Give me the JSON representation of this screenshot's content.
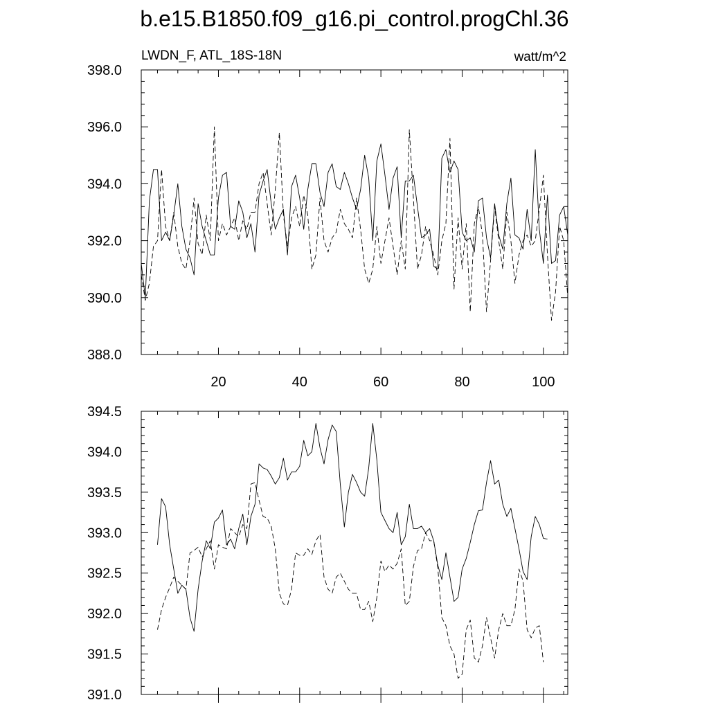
{
  "page": {
    "title": "b.e15.B1850.f09_g16.pi_control.progChl.36"
  },
  "chart_data": [
    {
      "type": "line",
      "subtitle_left": "LWDN_F, ATL_18S-18N",
      "subtitle_right": "watt/m^2",
      "xlabel": "",
      "ylabel": "",
      "xlim": [
        1,
        106
      ],
      "ylim": [
        388,
        398
      ],
      "x_ticks": [
        20,
        40,
        60,
        80,
        100
      ],
      "x_tick_labels": [
        "20",
        "40",
        "60",
        "80",
        "100"
      ],
      "y_ticks": [
        388,
        390,
        392,
        394,
        396,
        398
      ],
      "y_tick_labels": [
        "388.0",
        "390.0",
        "392.0",
        "394.0",
        "396.0",
        "398.0"
      ],
      "grid": false,
      "legend": "none",
      "series": [
        {
          "style": "solid",
          "x_start": 1,
          "values": [
            391.2,
            390.0,
            393.4,
            394.5,
            394.5,
            392.0,
            392.3,
            392.0,
            392.9,
            394.0,
            392.5,
            391.7,
            391.4,
            390.8,
            393.3,
            392.5,
            392.0,
            391.5,
            391.5,
            393.5,
            394.3,
            394.4,
            392.5,
            392.4,
            393.4,
            393.0,
            392.1,
            392.6,
            391.6,
            393.6,
            394.1,
            394.5,
            393.3,
            392.4,
            392.8,
            393.1,
            391.5,
            393.9,
            394.3,
            393.5,
            392.4,
            393.8,
            394.7,
            394.7,
            393.7,
            393.2,
            394.4,
            394.7,
            393.9,
            393.8,
            394.4,
            394.0,
            393.5,
            393.1,
            393.8,
            395.0,
            394.2,
            392.0,
            394.8,
            395.4,
            394.3,
            393.1,
            394.2,
            394.6,
            392.1,
            394.1,
            394.1,
            394.3,
            393.2,
            392.1,
            392.2,
            392.4,
            391.1,
            391.0,
            394.9,
            395.2,
            394.4,
            394.8,
            394.5,
            392.3,
            392.0,
            392.1,
            391.6,
            393.4,
            393.5,
            392.1,
            391.4,
            393.3,
            392.2,
            391.7,
            393.3,
            394.2,
            392.2,
            392.1,
            391.7,
            393.1,
            392.0,
            395.2,
            392.4,
            391.2,
            393.6,
            391.2,
            391.3,
            392.9,
            393.2,
            392.2
          ]
        },
        {
          "style": "dashed",
          "x_start": 1,
          "values": [
            390.8,
            389.9,
            390.5,
            391.8,
            392.0,
            394.5,
            392.5,
            392.0,
            393.0,
            391.8,
            391.2,
            391.0,
            392.0,
            393.5,
            391.9,
            391.5,
            392.9,
            392.0,
            396.0,
            392.0,
            392.6,
            392.2,
            392.5,
            392.8,
            392.0,
            392.7,
            392.4,
            393.0,
            393.0,
            394.0,
            394.4,
            393.3,
            392.2,
            393.8,
            395.8,
            392.9,
            391.8,
            392.8,
            393.2,
            392.5,
            393.6,
            392.9,
            391.0,
            391.5,
            393.5,
            392.0,
            391.6,
            392.1,
            392.3,
            393.1,
            392.6,
            392.4,
            392.1,
            393.5,
            392.4,
            391.0,
            390.5,
            391.0,
            392.5,
            391.2,
            392.0,
            392.8,
            391.8,
            390.8,
            392.0,
            391.0,
            395.9,
            393.5,
            391.0,
            391.5,
            392.5,
            392.0,
            391.5,
            390.8,
            392.0,
            392.6,
            395.6,
            390.3,
            392.8,
            391.0,
            392.6,
            389.5,
            392.6,
            393.2,
            392.2,
            389.5,
            391.3,
            393.2,
            392.0,
            391.0,
            393.0,
            392.0,
            390.5,
            391.5,
            392.0,
            392.2,
            391.8,
            392.0,
            393.1,
            394.3,
            391.5,
            389.2,
            390.2,
            392.5,
            392.0,
            390.0
          ]
        }
      ]
    },
    {
      "type": "line",
      "xlim": [
        1,
        106
      ],
      "ylim": [
        391.0,
        394.5
      ],
      "x_ticks": [
        20,
        40,
        60,
        80,
        100
      ],
      "x_tick_labels": [],
      "y_ticks": [
        391.0,
        391.5,
        392.0,
        392.5,
        393.0,
        393.5,
        394.0,
        394.5
      ],
      "y_tick_labels": [
        "391.0",
        "391.5",
        "392.0",
        "392.5",
        "393.0",
        "393.5",
        "394.0",
        "394.5"
      ],
      "grid": false,
      "legend": "none",
      "series": [
        {
          "style": "solid",
          "x_start": 5,
          "values": [
            392.85,
            393.42,
            393.32,
            392.85,
            392.55,
            392.25,
            392.35,
            392.3,
            391.95,
            391.78,
            392.3,
            392.65,
            392.9,
            392.8,
            393.13,
            393.18,
            393.28,
            392.85,
            392.92,
            392.8,
            393.05,
            393.23,
            392.85,
            393.2,
            393.35,
            393.85,
            393.8,
            393.78,
            393.7,
            393.6,
            393.68,
            393.92,
            393.65,
            393.75,
            393.75,
            393.82,
            394.14,
            393.95,
            394.0,
            394.35,
            394.05,
            393.85,
            394.15,
            394.33,
            394.25,
            393.6,
            393.07,
            393.5,
            393.72,
            393.62,
            393.5,
            393.45,
            393.8,
            394.35,
            393.9,
            393.25,
            393.15,
            393.05,
            393.0,
            393.25,
            392.85,
            392.95,
            393.35,
            393.05,
            393.05,
            393.08,
            393.0,
            393.05,
            392.9,
            392.6,
            392.42,
            392.75,
            392.45,
            392.15,
            392.2,
            392.55,
            392.68,
            392.88,
            393.1,
            393.27,
            393.28,
            393.62,
            393.89,
            393.6,
            393.65,
            393.35,
            393.2,
            393.3,
            393.05,
            392.8,
            392.52,
            392.42,
            392.95,
            393.2,
            393.1,
            392.93,
            392.92
          ]
        },
        {
          "style": "dashed",
          "x_start": 5,
          "values": [
            391.8,
            392.05,
            392.2,
            392.32,
            392.45,
            392.4,
            392.35,
            392.3,
            392.75,
            392.78,
            392.82,
            392.7,
            392.8,
            392.9,
            392.55,
            392.85,
            392.82,
            392.8,
            393.05,
            393.0,
            392.95,
            393.1,
            393.05,
            393.6,
            393.62,
            393.4,
            393.2,
            393.18,
            393.08,
            392.8,
            392.25,
            392.12,
            392.1,
            392.3,
            392.75,
            392.72,
            392.72,
            392.8,
            392.73,
            392.9,
            392.98,
            392.45,
            392.3,
            392.25,
            392.45,
            392.5,
            392.4,
            392.3,
            392.25,
            392.25,
            392.05,
            392.05,
            392.15,
            391.9,
            392.2,
            392.65,
            392.52,
            392.6,
            392.55,
            392.62,
            392.8,
            392.1,
            392.15,
            392.58,
            392.78,
            392.8,
            393.0,
            392.9,
            392.9,
            392.57,
            391.95,
            391.85,
            391.6,
            391.5,
            391.2,
            391.25,
            391.8,
            391.92,
            391.45,
            391.4,
            391.6,
            391.95,
            391.7,
            391.45,
            391.8,
            392.0,
            391.85,
            391.85,
            392.05,
            392.55,
            392.4,
            391.8,
            391.7,
            391.82,
            391.85,
            391.4
          ]
        }
      ]
    }
  ]
}
